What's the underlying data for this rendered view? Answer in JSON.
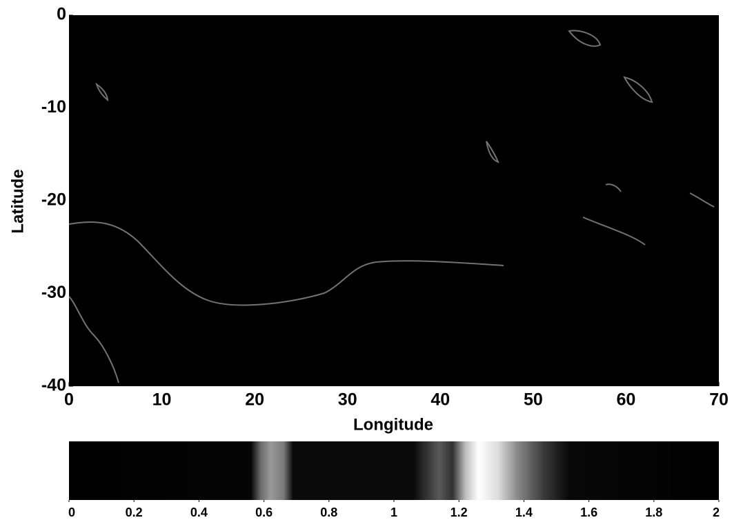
{
  "chart_data": {
    "type": "image",
    "xlabel": "Longitude",
    "ylabel": "Latitude",
    "xlim": [
      0,
      70
    ],
    "ylim": [
      -40,
      0
    ],
    "xticks": [
      0,
      10,
      20,
      30,
      40,
      50,
      60,
      70
    ],
    "yticks": [
      0,
      -10,
      -20,
      -30,
      -40
    ],
    "colorbar": {
      "clim": [
        0,
        2
      ],
      "ticks": [
        0,
        0.2,
        0.4,
        0.6,
        0.8,
        1,
        1.2,
        1.4,
        1.6,
        1.8,
        2
      ]
    }
  }
}
